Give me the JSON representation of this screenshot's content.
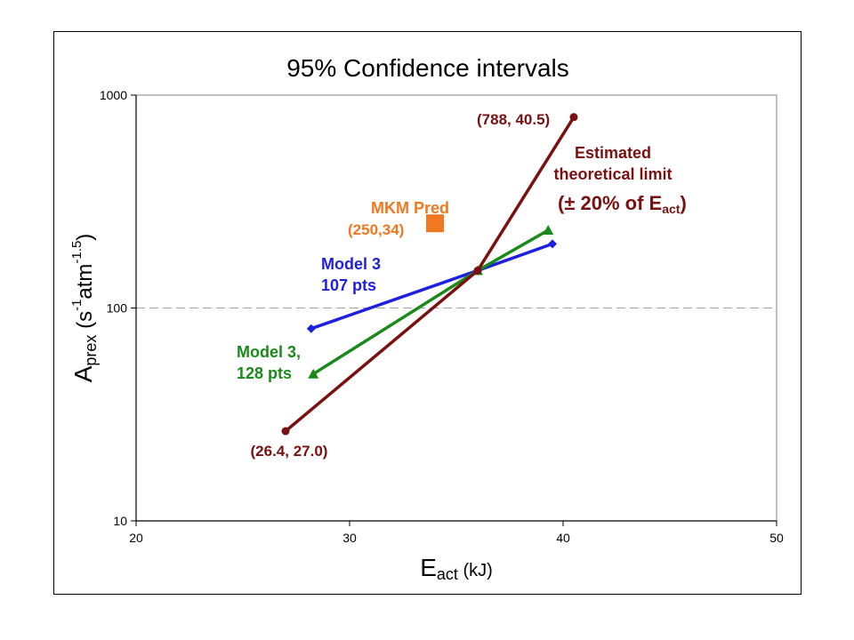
{
  "chart_data": {
    "type": "line",
    "title": "95% Confidence intervals",
    "xlabel": {
      "main": "E",
      "sub": "act",
      "rest": " (kJ)"
    },
    "ylabel": {
      "main": "A",
      "sub": "prex",
      "rest": " (s",
      "sup1": "-1",
      "mid": "atm",
      "sup2": "-1.5",
      "end": ")"
    },
    "xlim": [
      20,
      50
    ],
    "ylim": [
      10,
      1000
    ],
    "yscale": "log",
    "xticks": [
      20,
      30,
      40,
      50
    ],
    "yticks": [
      10,
      100,
      1000
    ],
    "gridlines": "dashed at y = 100",
    "series": [
      {
        "name": "Model 3, 107 pts",
        "color": "#1f1fe0",
        "marker": "diamond",
        "x": [
          28.2,
          36.0,
          39.5
        ],
        "y": [
          80,
          150,
          200
        ]
      },
      {
        "name": "Model 3, 128 pts",
        "color": "#1a8a1a",
        "marker": "triangle",
        "x": [
          28.3,
          36.0,
          39.3
        ],
        "y": [
          49,
          150,
          232
        ]
      },
      {
        "name": "Estimated theoretical limit (± 20% of Eact)",
        "color": "#7a1010",
        "marker": "circle",
        "x": [
          27.0,
          36.0,
          40.5
        ],
        "y": [
          26.4,
          150,
          788
        ]
      },
      {
        "name": "MKM Pred",
        "color": "#f07820",
        "marker": "square",
        "x": [
          34.0
        ],
        "y": [
          250
        ]
      }
    ],
    "annotations": [
      {
        "key": "model3_107",
        "lines": [
          "Model 3",
          "107 pts"
        ],
        "color": "#1f1fe0"
      },
      {
        "key": "model3_128",
        "lines": [
          "Model 3,",
          "128 pts"
        ],
        "color": "#1a8a1a"
      },
      {
        "key": "mkm_label",
        "lines": [
          "MKM Pred"
        ],
        "color": "#f07820"
      },
      {
        "key": "mkm_point",
        "lines": [
          "(250,34)"
        ],
        "color": "#f07820"
      },
      {
        "key": "limit_label",
        "lines": [
          "Estimated",
          "theoretical limit"
        ],
        "color": "#7a1010"
      },
      {
        "key": "limit_pm",
        "text": "(± 20%  of E",
        "sub": "act",
        "end": ")",
        "color": "#7a1010"
      },
      {
        "key": "upper_point",
        "lines": [
          "(788, 40.5)"
        ],
        "color": "#7a1010"
      },
      {
        "key": "lower_point",
        "lines": [
          "(26.4, 27.0)"
        ],
        "color": "#7a1010"
      }
    ]
  }
}
